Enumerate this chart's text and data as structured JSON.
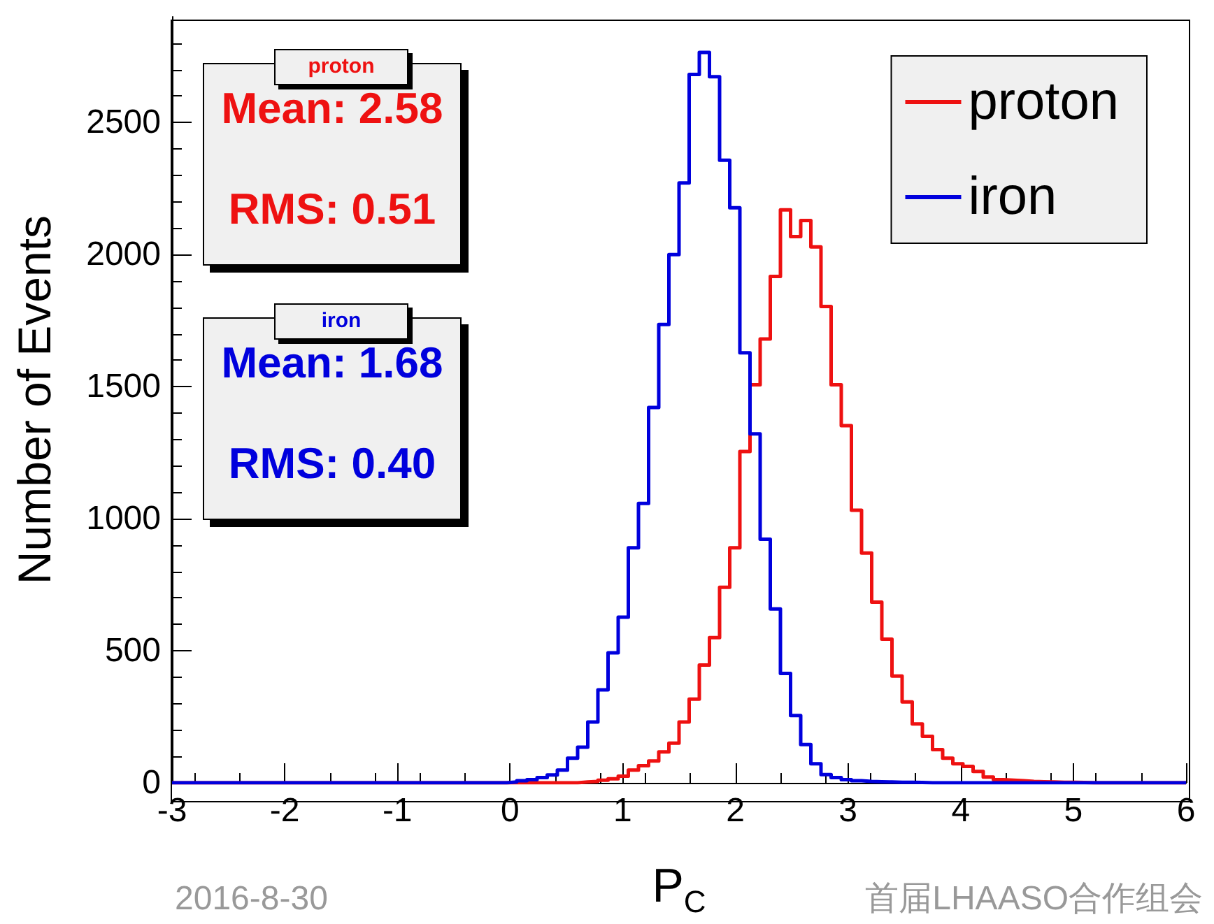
{
  "chart_data": {
    "type": "histogram",
    "xlabel": "P$_{C}$",
    "ylabel": "Number of Events",
    "bins": [
      -3,
      -2.91,
      -2.82,
      -2.73,
      -2.64,
      -2.55,
      -2.46,
      -2.37,
      -2.28,
      -2.19,
      -2.1,
      -2.01,
      -1.92,
      -1.83,
      -1.74,
      -1.65,
      -1.56,
      -1.47,
      -1.38,
      -1.29,
      -1.2,
      -1.11,
      -1.02,
      -0.93,
      -0.84,
      -0.75,
      -0.66,
      -0.57,
      -0.48,
      -0.39,
      -0.3,
      -0.21,
      -0.12,
      -0.03,
      0.06,
      0.15,
      0.24,
      0.33,
      0.42,
      0.51,
      0.6,
      0.69,
      0.78,
      0.87,
      0.96,
      1.05,
      1.14,
      1.23,
      1.32,
      1.41,
      1.5,
      1.59,
      1.68,
      1.77,
      1.86,
      1.95,
      2.04,
      2.13,
      2.22,
      2.31,
      2.4,
      2.49,
      2.58,
      2.67,
      2.76,
      2.85,
      2.94,
      3.03,
      3.12,
      3.21,
      3.3,
      3.39,
      3.48,
      3.57,
      3.66,
      3.75,
      3.84,
      3.93,
      4.02,
      4.11,
      4.2,
      4.29,
      4.38,
      4.47,
      4.56,
      4.65,
      4.74,
      4.83,
      4.92,
      5.01,
      5.1,
      5.19,
      5.28,
      5.37,
      5.46,
      5.55,
      5.64,
      5.73,
      5.82,
      5.91,
      6
    ],
    "series": [
      {
        "name": "proton",
        "color": "#ee1111",
        "values": [
          0,
          0,
          0,
          0,
          0,
          0,
          0,
          0,
          0,
          0,
          0,
          0,
          0,
          0,
          0,
          0,
          0,
          0,
          0,
          0,
          0,
          0,
          0,
          0,
          0,
          0,
          0,
          0,
          0,
          0,
          0,
          0,
          0,
          0,
          0,
          0,
          0,
          0,
          0,
          0,
          3,
          5,
          10,
          15,
          25,
          48,
          65,
          83,
          117,
          150,
          230,
          317,
          446,
          550,
          740,
          890,
          1254,
          1507,
          1680,
          1917,
          2169,
          2068,
          2129,
          2029,
          1803,
          1507,
          1352,
          1032,
          870,
          684,
          544,
          404,
          306,
          223,
          176,
          126,
          93,
          72,
          62,
          43,
          22,
          12,
          10,
          8,
          5,
          4,
          3,
          2,
          2,
          1,
          0,
          0,
          0,
          0,
          0,
          0,
          0,
          0,
          0,
          0
        ]
      },
      {
        "name": "iron",
        "color": "#0000dd",
        "values": [
          0,
          0,
          0,
          0,
          0,
          0,
          0,
          0,
          0,
          0,
          0,
          0,
          0,
          0,
          0,
          0,
          0,
          0,
          0,
          0,
          0,
          0,
          0,
          0,
          0,
          0,
          0,
          0,
          0,
          0,
          0,
          0,
          0,
          3,
          8,
          12,
          20,
          30,
          48,
          93,
          135,
          230,
          352,
          492,
          627,
          890,
          1058,
          1421,
          1735,
          2000,
          2271,
          2682,
          2765,
          2673,
          2357,
          2177,
          1628,
          1321,
          922,
          658,
          414,
          255,
          145,
          72,
          31,
          20,
          12,
          8,
          5,
          4,
          3,
          2,
          2,
          1,
          0,
          0,
          0,
          0,
          0,
          0,
          0,
          0,
          0,
          0,
          0,
          0,
          0,
          0,
          0,
          0,
          0,
          0,
          0,
          0,
          0,
          0,
          0,
          0,
          0,
          0
        ]
      }
    ],
    "xlim": [
      -3,
      6
    ],
    "xticks": [
      -3,
      -2,
      -1,
      0,
      1,
      2,
      3,
      4,
      5,
      6
    ],
    "ylim": [
      0,
      2900
    ],
    "yticks": [
      0,
      500,
      1000,
      1500,
      2000,
      2500
    ],
    "grid": false,
    "legend": "top right",
    "annotations": [
      "proton",
      "Mean: 2.58",
      "RMS: 0.51",
      "iron",
      "Mean: 1.68",
      "RMS: 0.40",
      "2016-8-30",
      "首届LHAASO合作组会"
    ]
  }
}
